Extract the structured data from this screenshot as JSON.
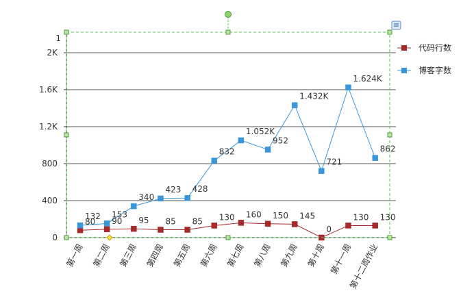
{
  "chart_data": {
    "type": "line",
    "categories": [
      "第一周",
      "第二周",
      "第三周",
      "第四周",
      "第五周",
      "第六周",
      "第七周",
      "第八周",
      "第九周",
      "第十周",
      "第十一周",
      "第十二周作业"
    ],
    "series": [
      {
        "name": "代码行数",
        "color": "#a52a2a",
        "values": [
          80,
          90,
          95,
          85,
          85,
          130,
          160,
          150,
          145,
          0,
          130,
          130
        ],
        "labels": [
          "80",
          "90",
          "95",
          "85",
          "85",
          "130",
          "160",
          "150",
          "145",
          "0",
          "130",
          "130"
        ]
      },
      {
        "name": "博客字数",
        "color": "#3a96db",
        "values": [
          132,
          153,
          340,
          423,
          428,
          832,
          1052,
          952,
          1432,
          721,
          1624,
          862
        ],
        "labels": [
          "132",
          "153",
          "340",
          "423",
          "428",
          "832",
          "1.052K",
          "952",
          "1.432K",
          "721",
          "1.624K",
          "862"
        ]
      }
    ],
    "y_ticks": [
      {
        "value": 0,
        "label": "0"
      },
      {
        "value": 400,
        "label": "400"
      },
      {
        "value": 800,
        "label": "800"
      },
      {
        "value": 1200,
        "label": "1.2K"
      },
      {
        "value": 1600,
        "label": "1.6K"
      },
      {
        "value": 2000,
        "label": "2K"
      }
    ],
    "y_top_label": "1",
    "ylim": [
      0,
      2000
    ],
    "grid": true,
    "legend_position": "right"
  }
}
